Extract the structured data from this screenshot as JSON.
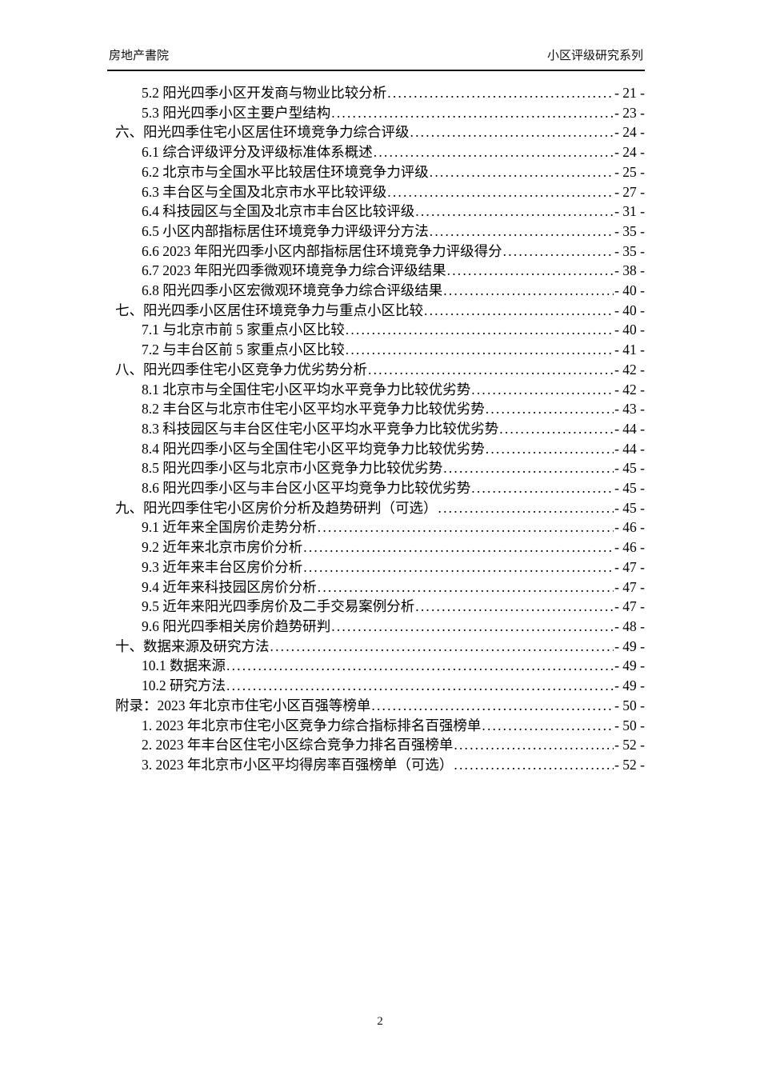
{
  "header": {
    "left": "房地产書院",
    "right": "小区评级研究系列"
  },
  "toc": {
    "entries": [
      {
        "level": 2,
        "label": "5.2 阳光四季小区开发商与物业比较分析",
        "page": "- 21 -"
      },
      {
        "level": 2,
        "label": "5.3 阳光四季小区主要户型结构",
        "page": "- 23 -"
      },
      {
        "level": 1,
        "label": "六、阳光四季住宅小区居住环境竞争力综合评级",
        "page": "- 24 -"
      },
      {
        "level": 2,
        "label": "6.1 综合评级评分及评级标准体系概述",
        "page": "- 24 -"
      },
      {
        "level": 2,
        "label": "6.2 北京市与全国水平比较居住环境竞争力评级",
        "page": "- 25 -"
      },
      {
        "level": 2,
        "label": "6.3 丰台区与全国及北京市水平比较评级",
        "page": "- 27 -"
      },
      {
        "level": 2,
        "label": "6.4 科技园区与全国及北京市丰台区比较评级",
        "page": "- 31 -"
      },
      {
        "level": 2,
        "label": "6.5 小区内部指标居住环境竞争力评级评分方法",
        "page": "- 35 -"
      },
      {
        "level": 2,
        "label": "6.6 2023 年阳光四季小区内部指标居住环境竞争力评级得分",
        "page": "- 35 -"
      },
      {
        "level": 2,
        "label": "6.7 2023 年阳光四季微观环境竞争力综合评级结果",
        "page": "- 38 -"
      },
      {
        "level": 2,
        "label": "6.8 阳光四季小区宏微观环境竞争力综合评级结果",
        "page": "- 40 -"
      },
      {
        "level": 1,
        "label": "七、阳光四季小区居住环境竞争力与重点小区比较",
        "page": "- 40 -"
      },
      {
        "level": 2,
        "label": "7.1 与北京市前 5 家重点小区比较",
        "page": "- 40 -"
      },
      {
        "level": 2,
        "label": "7.2 与丰台区前 5 家重点小区比较",
        "page": "- 41 -"
      },
      {
        "level": 1,
        "label": "八、阳光四季住宅小区竞争力优劣势分析",
        "page": "- 42 -"
      },
      {
        "level": 2,
        "label": "8.1 北京市与全国住宅小区平均水平竞争力比较优劣势",
        "page": "- 42 -"
      },
      {
        "level": 2,
        "label": "8.2 丰台区与北京市住宅小区平均水平竞争力比较优劣势",
        "page": "- 43 -"
      },
      {
        "level": 2,
        "label": "8.3 科技园区与丰台区住宅小区平均水平竞争力比较优劣势",
        "page": "- 44 -"
      },
      {
        "level": 2,
        "label": "8.4 阳光四季小区与全国住宅小区平均竞争力比较优劣势",
        "page": "- 44 -"
      },
      {
        "level": 2,
        "label": "8.5 阳光四季小区与北京市小区竞争力比较优劣势",
        "page": "- 45 -"
      },
      {
        "level": 2,
        "label": "8.6 阳光四季小区与丰台区小区平均竞争力比较优劣势",
        "page": "- 45 -"
      },
      {
        "level": 1,
        "label": "九、阳光四季住宅小区房价分析及趋势研判（可选）",
        "page": "- 45 -"
      },
      {
        "level": 2,
        "label": "9.1 近年来全国房价走势分析",
        "page": "- 46 -"
      },
      {
        "level": 2,
        "label": "9.2 近年来北京市房价分析",
        "page": "- 46 -"
      },
      {
        "level": 2,
        "label": "9.3 近年来丰台区房价分析",
        "page": "- 47 -"
      },
      {
        "level": 2,
        "label": "9.4 近年来科技园区房价分析",
        "page": "- 47 -"
      },
      {
        "level": 2,
        "label": "9.5 近年来阳光四季房价及二手交易案例分析",
        "page": "- 47 -"
      },
      {
        "level": 2,
        "label": "9.6 阳光四季相关房价趋势研判",
        "page": "- 48 -"
      },
      {
        "level": 1,
        "label": "十、数据来源及研究方法",
        "page": "- 49 -"
      },
      {
        "level": 2,
        "label": "10.1 数据来源",
        "page": "- 49 -"
      },
      {
        "level": 2,
        "label": "10.2 研究方法",
        "page": "- 49 -"
      },
      {
        "level": 1,
        "label": "附录：2023 年北京市住宅小区百强等榜单",
        "page": "- 50 -"
      },
      {
        "level": 2,
        "label": "1. 2023 年北京市住宅小区竞争力综合指标排名百强榜单",
        "page": "- 50 -"
      },
      {
        "level": 2,
        "label": "2. 2023 年丰台区住宅小区综合竞争力排名百强榜单",
        "page": "- 52 -"
      },
      {
        "level": 2,
        "label": "3. 2023 年北京市小区平均得房率百强榜单（可选）",
        "page": "- 52 -"
      }
    ]
  },
  "footer": {
    "page_number": "2"
  }
}
